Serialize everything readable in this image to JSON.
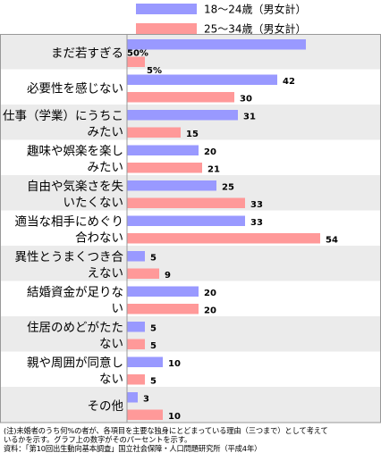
{
  "chart_data": {
    "type": "bar",
    "orientation": "horizontal",
    "grid": false,
    "legend_position": "top",
    "colors": {
      "series1": "#9999ff",
      "series2": "#ff9999",
      "band": "#ebebeb",
      "border": "#999999"
    },
    "series": [
      {
        "name": "18～24歳（男女計）",
        "values": [
          50,
          42,
          31,
          20,
          25,
          33,
          5,
          20,
          5,
          10,
          3
        ],
        "value_labels": [
          "50%",
          "42",
          "31",
          "20",
          "25",
          "33",
          "5",
          "20",
          "5",
          "10",
          "3"
        ]
      },
      {
        "name": "25～34歳（男女計）",
        "values": [
          5,
          30,
          15,
          21,
          33,
          54,
          9,
          20,
          5,
          5,
          10
        ],
        "value_labels": [
          "5%",
          "30",
          "15",
          "21",
          "33",
          "54",
          "9",
          "20",
          "5",
          "5",
          "10"
        ]
      }
    ],
    "categories": [
      [
        "まだ若すぎる"
      ],
      [
        "必要性を感じない"
      ],
      [
        "仕事（学業）にうちこ",
        "みたい"
      ],
      [
        "趣味や娯楽を楽し",
        "みたい"
      ],
      [
        "自由や気楽さを失",
        "いたくない"
      ],
      [
        "適当な相手にめぐり",
        "合わない"
      ],
      [
        "異性とうまくつき合",
        "えない"
      ],
      [
        "結婚資金が足りな",
        "い"
      ],
      [
        "住居のめどがたた",
        "ない"
      ],
      [
        "親や周囲が同意し",
        "ない"
      ],
      [
        "その他"
      ]
    ]
  },
  "note": [
    "(注)未婚者のうち何%の者が、各項目を主要な独身にとどまっている理由（三つまで）として考えて",
    "いるかを示す。グラフ上の数字がそのパーセントを示す。",
    "資料：「第10回出生動向基本調査」国立社会保障・人口問題研究所（平成4年）"
  ]
}
